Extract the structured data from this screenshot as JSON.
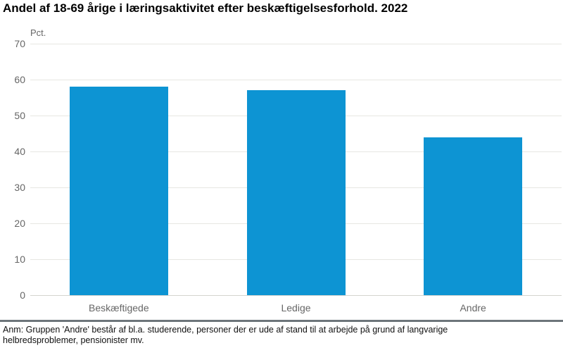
{
  "title": "Andel af 18-69 årige i læringsaktivitet efter beskæftigelsesforhold. 2022",
  "note": "Anm: Gruppen 'Andre' består af bl.a. studerende, personer der er ude af stand til at arbejde på grund af langvarige helbredsproblemer, pensionister mv.",
  "chart_data": {
    "type": "bar",
    "title": "Andel af 18-69 årige i læringsaktivitet efter beskæftigelsesforhold. 2022",
    "categories": [
      "Beskæftigede",
      "Ledige",
      "Andre"
    ],
    "values": [
      58,
      57,
      44
    ],
    "unit_label": "Pct.",
    "ylabel": "Pct.",
    "xlabel": "",
    "ylim": [
      0,
      70
    ],
    "yticks": [
      0,
      10,
      20,
      30,
      40,
      50,
      60,
      70
    ],
    "grid": true,
    "legend": "none",
    "colors": {
      "bar": "#0d94d3",
      "gridline": "#e7e7e2",
      "axis_text": "#666666",
      "title_text": "#000000",
      "note_text": "#111111",
      "divider": "#6d757a",
      "background": "#ffffff"
    }
  }
}
